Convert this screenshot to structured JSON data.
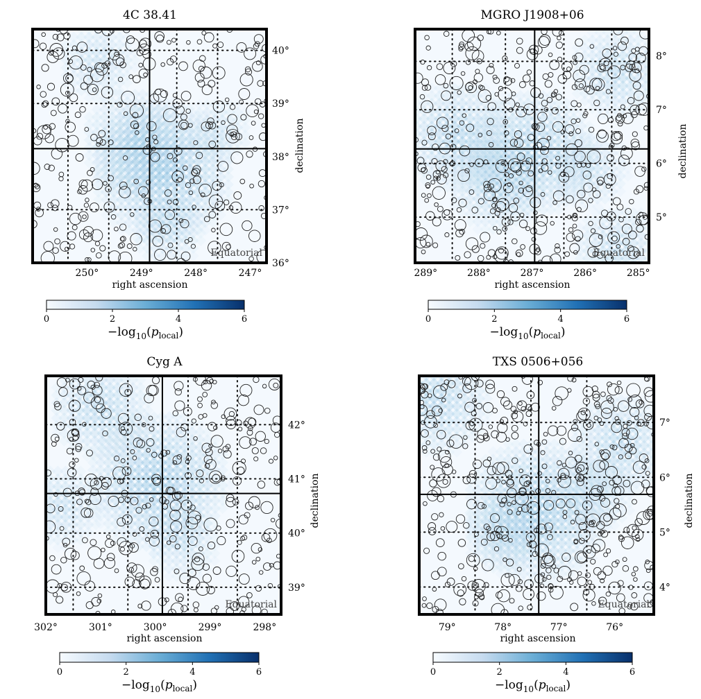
{
  "chart_data": [
    {
      "type": "heatmap",
      "title": "4C 38.41",
      "xlabel": "right ascension",
      "ylabel": "declination",
      "xlim": [
        251.0,
        246.7
      ],
      "ylim": [
        36.0,
        40.4
      ],
      "xticks": [
        250,
        249,
        248,
        247
      ],
      "xtick_labels": [
        "250°",
        "249°",
        "248°",
        "247°"
      ],
      "yticks": [
        36,
        37,
        38,
        39,
        40
      ],
      "ytick_labels": [
        "36°",
        "37°",
        "38°",
        "39°",
        "40°"
      ],
      "crosshair": {
        "ra": 248.85,
        "dec": 38.15
      },
      "dotted_ra": [
        250.35,
        249.6,
        248.35,
        247.6
      ],
      "dotted_dec": [
        37.0,
        39.0,
        40.0
      ],
      "frame_label": "Equatorial",
      "hotspots": [
        {
          "ra": 248.6,
          "dec": 37.8,
          "strength": 2.0
        },
        {
          "ra": 249.1,
          "dec": 38.4,
          "strength": 1.4
        },
        {
          "ra": 249.8,
          "dec": 39.9,
          "strength": 0.9
        },
        {
          "ra": 248.5,
          "dec": 36.7,
          "strength": 0.8
        },
        {
          "ra": 247.6,
          "dec": 38.6,
          "strength": 0.7
        }
      ],
      "colorbar": {
        "label_prefix": "−log",
        "label_sub": "10",
        "label_var": "p",
        "label_var_sub": "local",
        "min": 0,
        "max": 6,
        "ticks": [
          0,
          2,
          4,
          6
        ],
        "colors": [
          "#f7fbff",
          "#c6dbef",
          "#6baed6",
          "#2171b5",
          "#08306b"
        ]
      },
      "source_count": 330
    },
    {
      "type": "heatmap",
      "title": "MGRO J1908+06",
      "xlabel": "right ascension",
      "ylabel": "declination",
      "xlim": [
        289.2,
        284.8
      ],
      "ylim": [
        4.15,
        8.5
      ],
      "xticks": [
        289,
        288,
        287,
        286,
        285
      ],
      "xtick_labels": [
        "289°",
        "288°",
        "287°",
        "286°",
        "285°"
      ],
      "yticks": [
        5,
        6,
        7,
        8
      ],
      "ytick_labels": [
        "5°",
        "6°",
        "7°",
        "8°"
      ],
      "crosshair": {
        "ra": 286.95,
        "dec": 6.27
      },
      "dotted_ra": [
        288.5,
        287.5,
        286.4,
        285.5
      ],
      "dotted_dec": [
        5.0,
        6.0,
        7.0,
        7.9
      ],
      "frame_label": "Equatorial",
      "hotspots": [
        {
          "ra": 287.0,
          "dec": 6.3,
          "strength": 1.8
        },
        {
          "ra": 288.4,
          "dec": 6.6,
          "strength": 1.5
        },
        {
          "ra": 287.7,
          "dec": 5.7,
          "strength": 1.2
        },
        {
          "ra": 285.4,
          "dec": 7.8,
          "strength": 1.2
        },
        {
          "ra": 285.4,
          "dec": 4.5,
          "strength": 1.1
        },
        {
          "ra": 285.9,
          "dec": 6.0,
          "strength": 0.9
        }
      ],
      "colorbar": {
        "label_prefix": "−log",
        "label_sub": "10",
        "label_var": "p",
        "label_var_sub": "local",
        "min": 0,
        "max": 6,
        "ticks": [
          0,
          2,
          4,
          6
        ],
        "colors": [
          "#f7fbff",
          "#c6dbef",
          "#6baed6",
          "#2171b5",
          "#08306b"
        ]
      },
      "source_count": 430
    },
    {
      "type": "heatmap",
      "title": "Cyg A",
      "xlabel": "right ascension",
      "ylabel": "declination",
      "xlim": [
        302.0,
        297.7
      ],
      "ylim": [
        38.5,
        42.9
      ],
      "xticks": [
        302,
        301,
        300,
        299,
        298
      ],
      "xtick_labels": [
        "302°",
        "301°",
        "300°",
        "299°",
        "298°"
      ],
      "yticks": [
        39,
        40,
        41,
        42
      ],
      "ytick_labels": [
        "39°",
        "40°",
        "41°",
        "42°"
      ],
      "crosshair": {
        "ra": 299.87,
        "dec": 40.73
      },
      "dotted_ra": [
        301.5,
        300.5,
        299.4,
        298.5
      ],
      "dotted_dec": [
        39.0,
        40.0,
        41.0,
        42.0
      ],
      "frame_label": "Equatorial",
      "hotspots": [
        {
          "ra": 299.95,
          "dec": 41.05,
          "strength": 2.0
        },
        {
          "ra": 301.0,
          "dec": 42.4,
          "strength": 1.3
        },
        {
          "ra": 301.7,
          "dec": 40.6,
          "strength": 1.0
        },
        {
          "ra": 299.5,
          "dec": 39.9,
          "strength": 0.8
        }
      ],
      "colorbar": {
        "label_prefix": "−log",
        "label_sub": "10",
        "label_var": "p",
        "label_var_sub": "local",
        "min": 0,
        "max": 6,
        "ticks": [
          0,
          2,
          4,
          6
        ],
        "colors": [
          "#f7fbff",
          "#c6dbef",
          "#6baed6",
          "#2171b5",
          "#08306b"
        ]
      },
      "source_count": 340
    },
    {
      "type": "heatmap",
      "title": "TXS 0506+056",
      "xlabel": "right ascension",
      "ylabel": "declination",
      "xlim": [
        79.5,
        75.3
      ],
      "ylim": [
        3.5,
        7.85
      ],
      "xticks": [
        79,
        78,
        77,
        76
      ],
      "xtick_labels": [
        "79°",
        "78°",
        "77°",
        "76°"
      ],
      "yticks": [
        4,
        5,
        6,
        7
      ],
      "ytick_labels": [
        "4°",
        "5°",
        "6°",
        "7°"
      ],
      "crosshair": {
        "ra": 77.36,
        "dec": 5.69
      },
      "dotted_ra": [
        78.5,
        77.5,
        76.5
      ],
      "dotted_dec": [
        4.0,
        5.0,
        6.0,
        7.0
      ],
      "frame_label": "Equatorial",
      "hotspots": [
        {
          "ra": 77.4,
          "dec": 5.5,
          "strength": 2.0
        },
        {
          "ra": 79.2,
          "dec": 7.5,
          "strength": 1.4
        },
        {
          "ra": 75.9,
          "dec": 6.7,
          "strength": 1.3
        },
        {
          "ra": 78.0,
          "dec": 5.1,
          "strength": 0.9
        },
        {
          "ra": 76.3,
          "dec": 5.8,
          "strength": 0.8
        }
      ],
      "colorbar": {
        "label_prefix": "−log",
        "label_sub": "10",
        "label_var": "p",
        "label_var_sub": "local",
        "min": 0,
        "max": 6,
        "ticks": [
          0,
          2,
          4,
          6
        ],
        "colors": [
          "#f7fbff",
          "#c6dbef",
          "#6baed6",
          "#2171b5",
          "#08306b"
        ]
      },
      "source_count": 460
    }
  ]
}
